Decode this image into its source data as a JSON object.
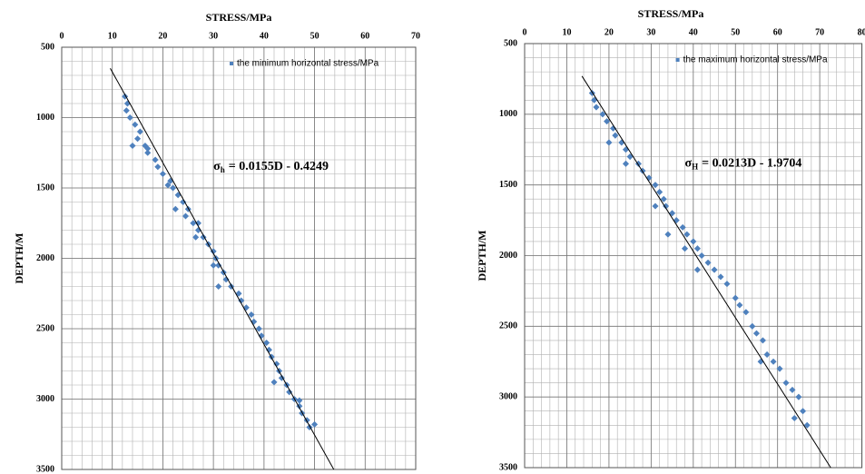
{
  "chart_data": [
    {
      "type": "scatter",
      "xlabel": "STRESS/MPa",
      "ylabel": "DEPTH/M",
      "xlim": [
        0,
        70
      ],
      "xticks": [
        0,
        10,
        20,
        30,
        40,
        50,
        60,
        70
      ],
      "ylim": [
        500,
        3500
      ],
      "yticks": [
        500,
        1000,
        1500,
        2000,
        2500,
        3000,
        3500
      ],
      "y_inverted": true,
      "x_axis_top": true,
      "grid": true,
      "minor_grid": {
        "x": 2,
        "y": 100
      },
      "legend": "upper-right",
      "series": [
        {
          "name": "the minimum horizontal stress/MPa",
          "color": "#4f81bd",
          "x": [
            12.5,
            13,
            12.8,
            13.5,
            14.5,
            15.5,
            15,
            16.5,
            17,
            18.5,
            19,
            20,
            21.5,
            22,
            23,
            24,
            25,
            24.5,
            26,
            27,
            28,
            29,
            30,
            30.5,
            31,
            32,
            32.5,
            33.5,
            35,
            35.5,
            36.5,
            37.5,
            38,
            39,
            39.5,
            40.5,
            41,
            41.5,
            42.5,
            43,
            43.5,
            44.5,
            45,
            46,
            47,
            47.5,
            48.5,
            49,
            50,
            17,
            21,
            27,
            30,
            31,
            42,
            47,
            14,
            22.5,
            26.5
          ],
          "values": [
            850,
            900,
            950,
            1000,
            1050,
            1100,
            1150,
            1200,
            1250,
            1300,
            1350,
            1400,
            1450,
            1500,
            1550,
            1600,
            1650,
            1700,
            1750,
            1800,
            1850,
            1900,
            1950,
            2000,
            2050,
            2100,
            2150,
            2200,
            2250,
            2300,
            2350,
            2400,
            2450,
            2500,
            2550,
            2600,
            2650,
            2700,
            2750,
            2800,
            2850,
            2900,
            2950,
            3000,
            3050,
            3100,
            3150,
            3200,
            3180,
            1220,
            1480,
            1750,
            2050,
            2200,
            2880,
            3010,
            1200,
            1650,
            1850
          ]
        }
      ],
      "trendline": {
        "x": [
          9.6,
          53.8
        ],
        "y": [
          650,
          3500
        ],
        "color": "#000000"
      },
      "annotation": {
        "symbol": "σ",
        "subscript": "h",
        "text": "= 0.0155D - 0.4249"
      }
    },
    {
      "type": "scatter",
      "xlabel": "STRESS/MPa",
      "ylabel": "DEPTH/M",
      "xlim": [
        0,
        80
      ],
      "xticks": [
        0,
        10,
        20,
        30,
        40,
        50,
        60,
        70,
        80
      ],
      "ylim": [
        500,
        3500
      ],
      "yticks": [
        500,
        1000,
        1500,
        2000,
        2500,
        3000,
        3500
      ],
      "y_inverted": true,
      "x_axis_top": true,
      "grid": true,
      "minor_grid": {
        "x": 2,
        "y": 100
      },
      "legend": "upper-right",
      "series": [
        {
          "name": "the maximum horizontal stress/MPa",
          "color": "#4f81bd",
          "x": [
            16,
            16.5,
            17,
            18.5,
            19.5,
            21,
            21.5,
            23,
            24,
            25,
            27,
            28,
            29.5,
            31,
            32,
            33,
            33.5,
            35,
            36,
            37.5,
            38.5,
            40,
            41,
            42,
            43.5,
            45,
            46.5,
            48,
            50,
            51,
            52.5,
            54,
            55,
            56.5,
            57.5,
            59,
            60.5,
            62,
            63.5,
            65,
            66,
            67,
            20,
            24,
            31,
            34,
            38,
            41,
            56,
            64
          ],
          "values": [
            850,
            900,
            950,
            1000,
            1050,
            1100,
            1150,
            1200,
            1250,
            1300,
            1350,
            1400,
            1450,
            1500,
            1550,
            1600,
            1650,
            1700,
            1750,
            1800,
            1850,
            1900,
            1950,
            2000,
            2050,
            2100,
            2150,
            2200,
            2300,
            2350,
            2400,
            2500,
            2550,
            2600,
            2700,
            2750,
            2800,
            2900,
            2950,
            3000,
            3100,
            3200,
            1200,
            1350,
            1650,
            1850,
            1950,
            2100,
            2750,
            3150
          ]
        }
      ],
      "trendline": {
        "x": [
          13.6,
          72.6
        ],
        "y": [
          730,
          3500
        ],
        "color": "#000000"
      },
      "annotation": {
        "symbol": "σ",
        "subscript": "H",
        "text": "= 0.0213D - 1.9704"
      }
    }
  ]
}
